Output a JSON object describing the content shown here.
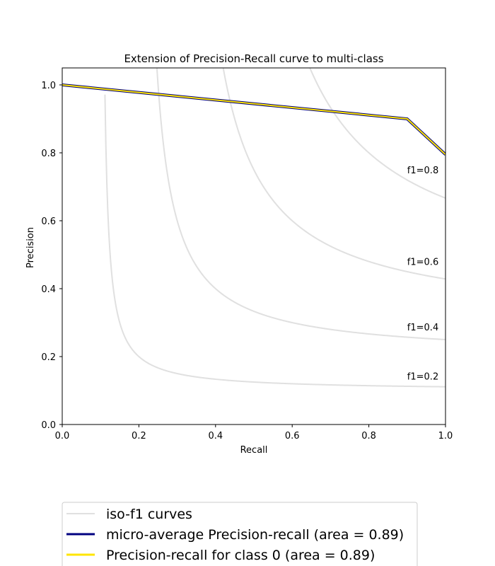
{
  "chart_data": {
    "type": "line",
    "title": "Extension of Precision-Recall curve to multi-class",
    "xlabel": "Recall",
    "ylabel": "Precision",
    "xlim": [
      0.0,
      1.0
    ],
    "ylim": [
      0.0,
      1.05
    ],
    "x_ticks": [
      "0.0",
      "0.2",
      "0.4",
      "0.6",
      "0.8",
      "1.0"
    ],
    "y_ticks": [
      "0.0",
      "0.2",
      "0.4",
      "0.6",
      "0.8",
      "1.0"
    ],
    "grid": false,
    "legend_placement": "bottom-left, below plot",
    "iso_f1": {
      "f_scores": [
        0.2,
        0.4,
        0.6,
        0.8
      ],
      "labels": [
        "f1=0.2",
        "f1=0.4",
        "f1=0.6",
        "f1=0.8"
      ],
      "color": "#e0e0e0"
    },
    "series": [
      {
        "name": "micro-average Precision-recall (area = 0.89)",
        "color": "#000080",
        "x": [
          0.0,
          0.9,
          1.0
        ],
        "y": [
          1.0,
          0.9,
          0.795
        ]
      },
      {
        "name": "Precision-recall for class 0 (area = 0.89)",
        "color": "#ffe500",
        "x": [
          0.0,
          0.9,
          1.0
        ],
        "y": [
          1.0,
          0.9,
          0.795
        ]
      }
    ],
    "legend": [
      {
        "label": "iso-f1 curves",
        "color": "#e0e0e0"
      },
      {
        "label": "micro-average Precision-recall (area = 0.89)",
        "color": "#000080"
      },
      {
        "label": "Precision-recall for class 0 (area = 0.89)",
        "color": "#ffe500"
      }
    ]
  }
}
